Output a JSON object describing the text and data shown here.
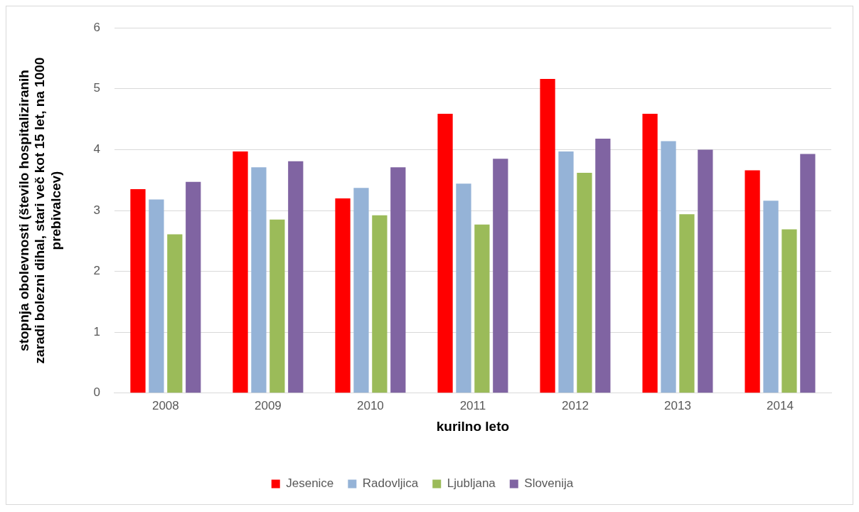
{
  "chart_data": {
    "type": "bar",
    "xlabel": "kurilno leto",
    "ylabel": "stopnja obolevnosti (število hospitaliziranih zaradi bolezni dihal, stari več kot 15 let, na 1000 prebivalcev)",
    "categories": [
      "2008",
      "2009",
      "2010",
      "2011",
      "2012",
      "2013",
      "2014"
    ],
    "series": [
      {
        "name": "Jesenice",
        "color": "#ff0000",
        "values": [
          3.35,
          3.97,
          3.2,
          4.59,
          5.16,
          4.59,
          3.66
        ]
      },
      {
        "name": "Radovljica",
        "color": "#95b3d7",
        "values": [
          3.18,
          3.71,
          3.37,
          3.44,
          3.97,
          4.14,
          3.16
        ]
      },
      {
        "name": "Ljubljana",
        "color": "#9bbb59",
        "values": [
          2.61,
          2.85,
          2.92,
          2.77,
          3.62,
          2.94,
          2.69
        ]
      },
      {
        "name": "Slovenija",
        "color": "#8064a2",
        "values": [
          3.47,
          3.81,
          3.71,
          3.85,
          4.18,
          4.0,
          3.93
        ]
      }
    ],
    "ylim": [
      0,
      6
    ],
    "yticks": [
      0,
      1,
      2,
      3,
      4,
      5,
      6
    ],
    "grid": "y",
    "legend": "bottom"
  }
}
